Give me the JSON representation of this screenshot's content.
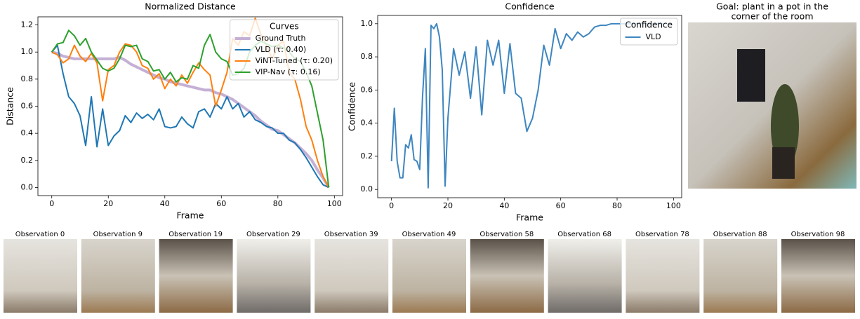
{
  "chart_data": [
    {
      "type": "line",
      "title": "Normalized Distance",
      "xlabel": "Frame",
      "ylabel": "Distance",
      "x": [
        0,
        2,
        4,
        6,
        8,
        10,
        12,
        14,
        16,
        18,
        20,
        22,
        24,
        26,
        28,
        30,
        32,
        34,
        36,
        38,
        40,
        42,
        44,
        46,
        48,
        50,
        52,
        54,
        56,
        58,
        60,
        62,
        64,
        66,
        68,
        70,
        72,
        74,
        76,
        78,
        80,
        82,
        84,
        86,
        88,
        90,
        92,
        94,
        96,
        98
      ],
      "xlim": [
        -4.9,
        102.9
      ],
      "xticks": [
        0,
        20,
        40,
        60,
        80,
        100
      ],
      "ylim": [
        -0.06,
        1.26
      ],
      "yticks": [
        {
          "value": 0,
          "label": "0.0"
        },
        {
          "value": 0.2,
          "label": "0.2"
        },
        {
          "value": 0.4,
          "label": "0.4"
        },
        {
          "value": 0.6,
          "label": "0.6"
        },
        {
          "value": 0.8,
          "label": "0.8"
        },
        {
          "value": 1,
          "label": "1.0"
        },
        {
          "value": 1.2,
          "label": "1.2"
        }
      ],
      "legend_title": "Curves",
      "legend": "upper right",
      "series": [
        {
          "name": "Ground Truth",
          "color": "#c5b0d5",
          "width": 4,
          "values": [
            1.0,
            0.99,
            0.97,
            0.96,
            0.95,
            0.95,
            0.95,
            0.95,
            0.95,
            0.95,
            0.95,
            0.95,
            0.96,
            0.94,
            0.91,
            0.89,
            0.87,
            0.85,
            0.83,
            0.81,
            0.8,
            0.78,
            0.77,
            0.76,
            0.75,
            0.74,
            0.73,
            0.72,
            0.72,
            0.7,
            0.69,
            0.67,
            0.65,
            0.62,
            0.59,
            0.56,
            0.53,
            0.49,
            0.46,
            0.43,
            0.42,
            0.39,
            0.36,
            0.33,
            0.29,
            0.25,
            0.2,
            0.13,
            0.07,
            0.0
          ]
        },
        {
          "name": "VLD (τ: 0.40)",
          "color": "#1f77b4",
          "width": 2,
          "values": [
            1.0,
            1.05,
            0.84,
            0.67,
            0.62,
            0.53,
            0.31,
            0.67,
            0.3,
            0.58,
            0.31,
            0.38,
            0.42,
            0.53,
            0.48,
            0.55,
            0.51,
            0.54,
            0.5,
            0.58,
            0.45,
            0.44,
            0.45,
            0.52,
            0.47,
            0.44,
            0.56,
            0.58,
            0.52,
            0.62,
            0.58,
            0.67,
            0.58,
            0.62,
            0.52,
            0.56,
            0.5,
            0.48,
            0.45,
            0.44,
            0.4,
            0.4,
            0.35,
            0.33,
            0.28,
            0.22,
            0.15,
            0.08,
            0.02,
            0.0
          ]
        },
        {
          "name": "ViNT-Tuned (τ: 0.20)",
          "color": "#ff7f0e",
          "width": 2,
          "values": [
            1.0,
            0.98,
            0.92,
            0.95,
            1.05,
            0.97,
            0.93,
            0.99,
            0.92,
            0.64,
            0.87,
            0.9,
            1.0,
            1.06,
            1.05,
            1.0,
            0.9,
            0.88,
            0.8,
            0.84,
            0.73,
            0.8,
            0.75,
            0.83,
            0.77,
            0.85,
            0.92,
            0.87,
            0.83,
            0.6,
            0.72,
            0.85,
            1.1,
            1.05,
            1.15,
            1.12,
            1.25,
            1.13,
            1.05,
            0.95,
            1.05,
            1.08,
            0.85,
            0.8,
            0.65,
            0.45,
            0.35,
            0.2,
            0.08,
            0.0
          ]
        },
        {
          "name": "VIP-Nav (τ: 0.16)",
          "color": "#2ca02c",
          "width": 2,
          "values": [
            1.0,
            1.06,
            1.07,
            1.16,
            1.12,
            1.05,
            1.1,
            1.0,
            0.94,
            0.88,
            0.86,
            0.88,
            0.95,
            1.05,
            1.04,
            1.05,
            0.95,
            0.93,
            0.86,
            0.87,
            0.8,
            0.85,
            0.78,
            0.81,
            0.8,
            0.9,
            0.88,
            1.05,
            1.13,
            1.0,
            0.95,
            0.93,
            0.83,
            0.84,
            0.88,
            1.0,
            1.05,
            1.08,
            1.06,
            1.04,
            1.05,
            1.03,
            1.0,
            0.95,
            0.93,
            0.85,
            0.75,
            0.55,
            0.35,
            0.0
          ]
        }
      ]
    },
    {
      "type": "line",
      "title": "Confidence",
      "xlabel": "Frame",
      "ylabel": "Confidence",
      "x": [
        0,
        1,
        2,
        3,
        4,
        5,
        6,
        7,
        8,
        9,
        10,
        11,
        12,
        13,
        14,
        15,
        16,
        17,
        18,
        19,
        20,
        22,
        24,
        26,
        28,
        30,
        32,
        34,
        36,
        38,
        40,
        42,
        44,
        46,
        48,
        50,
        52,
        54,
        56,
        58,
        60,
        62,
        64,
        66,
        68,
        70,
        72,
        74,
        76,
        78,
        80,
        82,
        84,
        86,
        88,
        90,
        92,
        94,
        96,
        98
      ],
      "xlim": [
        -4.9,
        102.9
      ],
      "xticks": [
        0,
        20,
        40,
        60,
        80,
        100
      ],
      "ylim": [
        -0.05,
        1.05
      ],
      "yticks": [
        {
          "value": 0,
          "label": "0.0"
        },
        {
          "value": 0.2,
          "label": "0.2"
        },
        {
          "value": 0.4,
          "label": "0.4"
        },
        {
          "value": 0.6,
          "label": "0.6"
        },
        {
          "value": 0.8,
          "label": "0.8"
        },
        {
          "value": 1,
          "label": "1.0"
        }
      ],
      "legend_title": "Confidence",
      "legend": "upper right",
      "series": [
        {
          "name": "VLD",
          "color": "#3e86c0",
          "width": 2,
          "values": [
            0.17,
            0.49,
            0.17,
            0.07,
            0.07,
            0.27,
            0.25,
            0.33,
            0.18,
            0.17,
            0.12,
            0.56,
            0.85,
            0.01,
            0.99,
            0.97,
            1.0,
            0.92,
            0.72,
            0.02,
            0.43,
            0.85,
            0.69,
            0.83,
            0.55,
            0.86,
            0.45,
            0.9,
            0.75,
            0.9,
            0.58,
            0.88,
            0.58,
            0.55,
            0.35,
            0.43,
            0.6,
            0.87,
            0.75,
            0.97,
            0.85,
            0.94,
            0.9,
            0.95,
            0.92,
            0.94,
            0.98,
            0.99,
            0.99,
            1.0,
            1.0,
            1.0,
            1.0,
            1.0,
            1.0,
            1.0,
            1.0,
            1.0,
            1.0,
            1.0
          ]
        }
      ]
    }
  ],
  "goal": {
    "caption": [
      "Goal: plant in a pot in the",
      "corner of the room"
    ]
  },
  "observations": [
    "Observation 0",
    "Observation 9",
    "Observation 19",
    "Observation 29",
    "Observation 39",
    "Observation 49",
    "Observation 58",
    "Observation 68",
    "Observation 78",
    "Observation 88",
    "Observation 98"
  ]
}
